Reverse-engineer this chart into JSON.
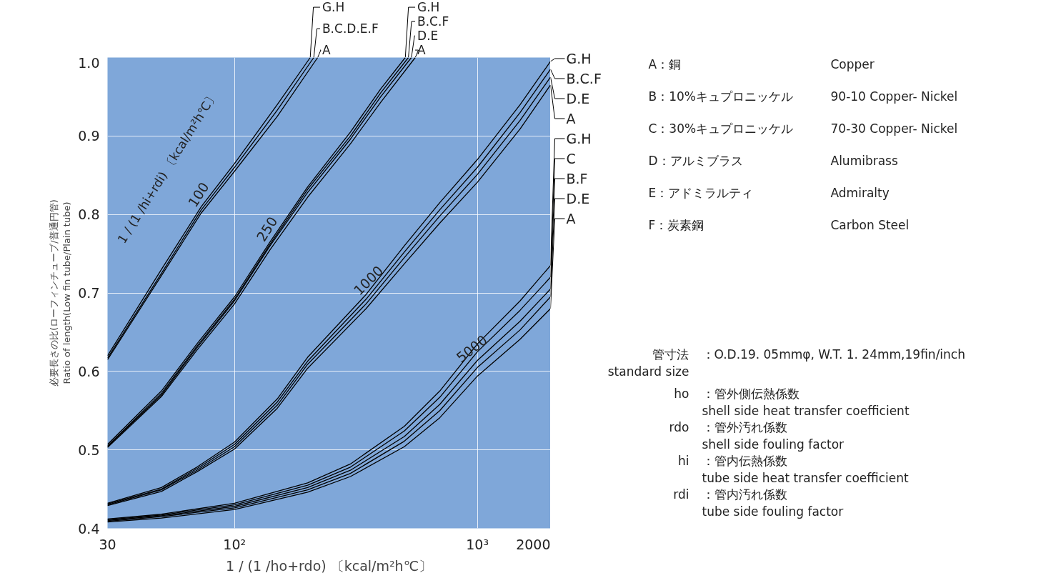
{
  "chart_data": {
    "type": "line",
    "log": "x",
    "grid": true,
    "legend": "top right",
    "xlabel": "1 / (1 /ho+rdo) 〔kcal/m²h℃〕",
    "ylabel": "必要長さの比(ローフィンチューブ/普通円管)\nRatio of length(Low fin tube/Plain tube)",
    "xlim": [
      30,
      2000
    ],
    "ylim": [
      0.4,
      1.0
    ],
    "xticks": [
      30,
      {
        "value": 100,
        "label": "10²"
      },
      {
        "value": 1000,
        "label": "10³"
      },
      2000
    ],
    "yticks": [
      0.4,
      0.5,
      0.6,
      0.7,
      0.8,
      0.9,
      {
        "value": 1.0,
        "label": "1.0"
      }
    ],
    "annotations": [
      "1 / (1 /hi+rdi) 〔kcal/m²h℃〕",
      {
        "text": "100",
        "x": 73,
        "y": 0.806
      },
      {
        "text": "250",
        "x": 140,
        "y": 0.762
      },
      {
        "text": "1000",
        "x": 348,
        "y": 0.695
      },
      {
        "text": "5000",
        "x": 916,
        "y": 0.61
      },
      "A：銅",
      "Copper",
      "B：10%キュプロニッケル",
      "90-10 Copper- Nickel",
      "C：30%キュプロニッケル",
      "70-30 Copper- Nickel",
      "D：アルミブラス",
      "Alumibrass",
      "E：アドミラルティ",
      "Admiralty",
      "F：炭素鋼",
      "Carbon Steel",
      "管寸法\nstandard size",
      "：O.D.19. 05mmφ, W.T. 1. 24mm,19fin/inch",
      "ho",
      "：管外側伝熱係数\n  shell side heat transfer coefficient",
      "rdo",
      "：管外汚れ係数\n  shell side fouling factor",
      "hi",
      "：管内伝熱係数\n  tube side heat transfer coefficient",
      "rdi",
      "：管内汚れ係数\n  tube side fouling factor"
    ],
    "series": [
      {
        "name": "G.H",
        "color": "#000000",
        "x": [
          30,
          50,
          73,
          100,
          150,
          205
        ],
        "values": [
          0.62,
          0.73,
          0.81,
          0.865,
          0.94,
          1.0
        ]
      },
      {
        "name": "B.C.D.E.F",
        "color": "#000000",
        "x": [
          30,
          50,
          73,
          100,
          150,
          212
        ],
        "values": [
          0.617,
          0.725,
          0.806,
          0.86,
          0.933,
          1.0
        ]
      },
      {
        "name": "A",
        "color": "#000000",
        "x": [
          30,
          50,
          73,
          100,
          150,
          220
        ],
        "values": [
          0.615,
          0.722,
          0.802,
          0.855,
          0.925,
          1.0
        ]
      },
      {
        "name": "G.H",
        "color": "#000000",
        "x": [
          30,
          50,
          70,
          100,
          140,
          200,
          300,
          400,
          505
        ],
        "values": [
          0.507,
          0.575,
          0.635,
          0.695,
          0.765,
          0.835,
          0.905,
          0.96,
          1.0
        ]
      },
      {
        "name": "B.C.F",
        "color": "#000000",
        "x": [
          30,
          50,
          70,
          100,
          140,
          200,
          300,
          400,
          520
        ],
        "values": [
          0.505,
          0.572,
          0.632,
          0.692,
          0.762,
          0.832,
          0.9,
          0.955,
          1.0
        ]
      },
      {
        "name": "D.E",
        "color": "#000000",
        "x": [
          30,
          50,
          70,
          100,
          140,
          200,
          300,
          400,
          535
        ],
        "values": [
          0.504,
          0.57,
          0.63,
          0.69,
          0.76,
          0.828,
          0.896,
          0.95,
          1.0
        ]
      },
      {
        "name": "A",
        "color": "#000000",
        "x": [
          30,
          50,
          70,
          100,
          140,
          200,
          300,
          400,
          555
        ],
        "values": [
          0.503,
          0.568,
          0.627,
          0.686,
          0.755,
          0.822,
          0.89,
          0.943,
          1.0
        ]
      },
      {
        "name": "G.H",
        "color": "#000000",
        "x": [
          30,
          50,
          70,
          100,
          150,
          200,
          348,
          500,
          700,
          1000,
          1500,
          2000
        ],
        "values": [
          0.432,
          0.452,
          0.478,
          0.51,
          0.565,
          0.618,
          0.698,
          0.76,
          0.815,
          0.87,
          0.94,
          0.995
        ]
      },
      {
        "name": "B.C.F",
        "color": "#000000",
        "x": [
          30,
          50,
          70,
          100,
          150,
          200,
          348,
          500,
          700,
          1000,
          1500,
          2000
        ],
        "values": [
          0.431,
          0.45,
          0.476,
          0.507,
          0.561,
          0.613,
          0.692,
          0.752,
          0.806,
          0.86,
          0.93,
          0.985
        ]
      },
      {
        "name": "D.E",
        "color": "#000000",
        "x": [
          30,
          50,
          70,
          100,
          150,
          200,
          348,
          500,
          700,
          1000,
          1500,
          2000
        ],
        "values": [
          0.43,
          0.449,
          0.474,
          0.504,
          0.557,
          0.609,
          0.686,
          0.745,
          0.798,
          0.851,
          0.92,
          0.975
        ]
      },
      {
        "name": "A",
        "color": "#000000",
        "x": [
          30,
          50,
          70,
          100,
          150,
          200,
          348,
          500,
          700,
          1000,
          1500,
          2000
        ],
        "values": [
          0.429,
          0.447,
          0.472,
          0.501,
          0.553,
          0.604,
          0.68,
          0.737,
          0.789,
          0.841,
          0.909,
          0.965
        ]
      },
      {
        "name": "G.H",
        "color": "#000000",
        "x": [
          30,
          50,
          100,
          200,
          300,
          500,
          700,
          1000,
          1500,
          2000
        ],
        "values": [
          0.412,
          0.418,
          0.432,
          0.458,
          0.482,
          0.53,
          0.575,
          0.635,
          0.69,
          0.735
        ]
      },
      {
        "name": "C",
        "color": "#000000",
        "x": [
          30,
          50,
          100,
          200,
          300,
          500,
          700,
          1000,
          1500,
          2000
        ],
        "values": [
          0.411,
          0.417,
          0.43,
          0.455,
          0.478,
          0.524,
          0.567,
          0.625,
          0.678,
          0.72
        ]
      },
      {
        "name": "B.F",
        "color": "#000000",
        "x": [
          30,
          50,
          100,
          200,
          300,
          500,
          700,
          1000,
          1500,
          2000
        ],
        "values": [
          0.41,
          0.416,
          0.428,
          0.452,
          0.474,
          0.517,
          0.558,
          0.614,
          0.664,
          0.705
        ]
      },
      {
        "name": "D.E",
        "color": "#000000",
        "x": [
          30,
          50,
          100,
          200,
          300,
          500,
          700,
          1000,
          1500,
          2000
        ],
        "values": [
          0.409,
          0.415,
          0.426,
          0.449,
          0.47,
          0.511,
          0.55,
          0.605,
          0.653,
          0.695
        ]
      },
      {
        "name": "A",
        "color": "#000000",
        "x": [
          30,
          50,
          100,
          200,
          300,
          500,
          700,
          1000,
          1500,
          2000
        ],
        "values": [
          0.408,
          0.413,
          0.424,
          0.446,
          0.466,
          0.504,
          0.541,
          0.594,
          0.641,
          0.68
        ]
      }
    ]
  }
}
